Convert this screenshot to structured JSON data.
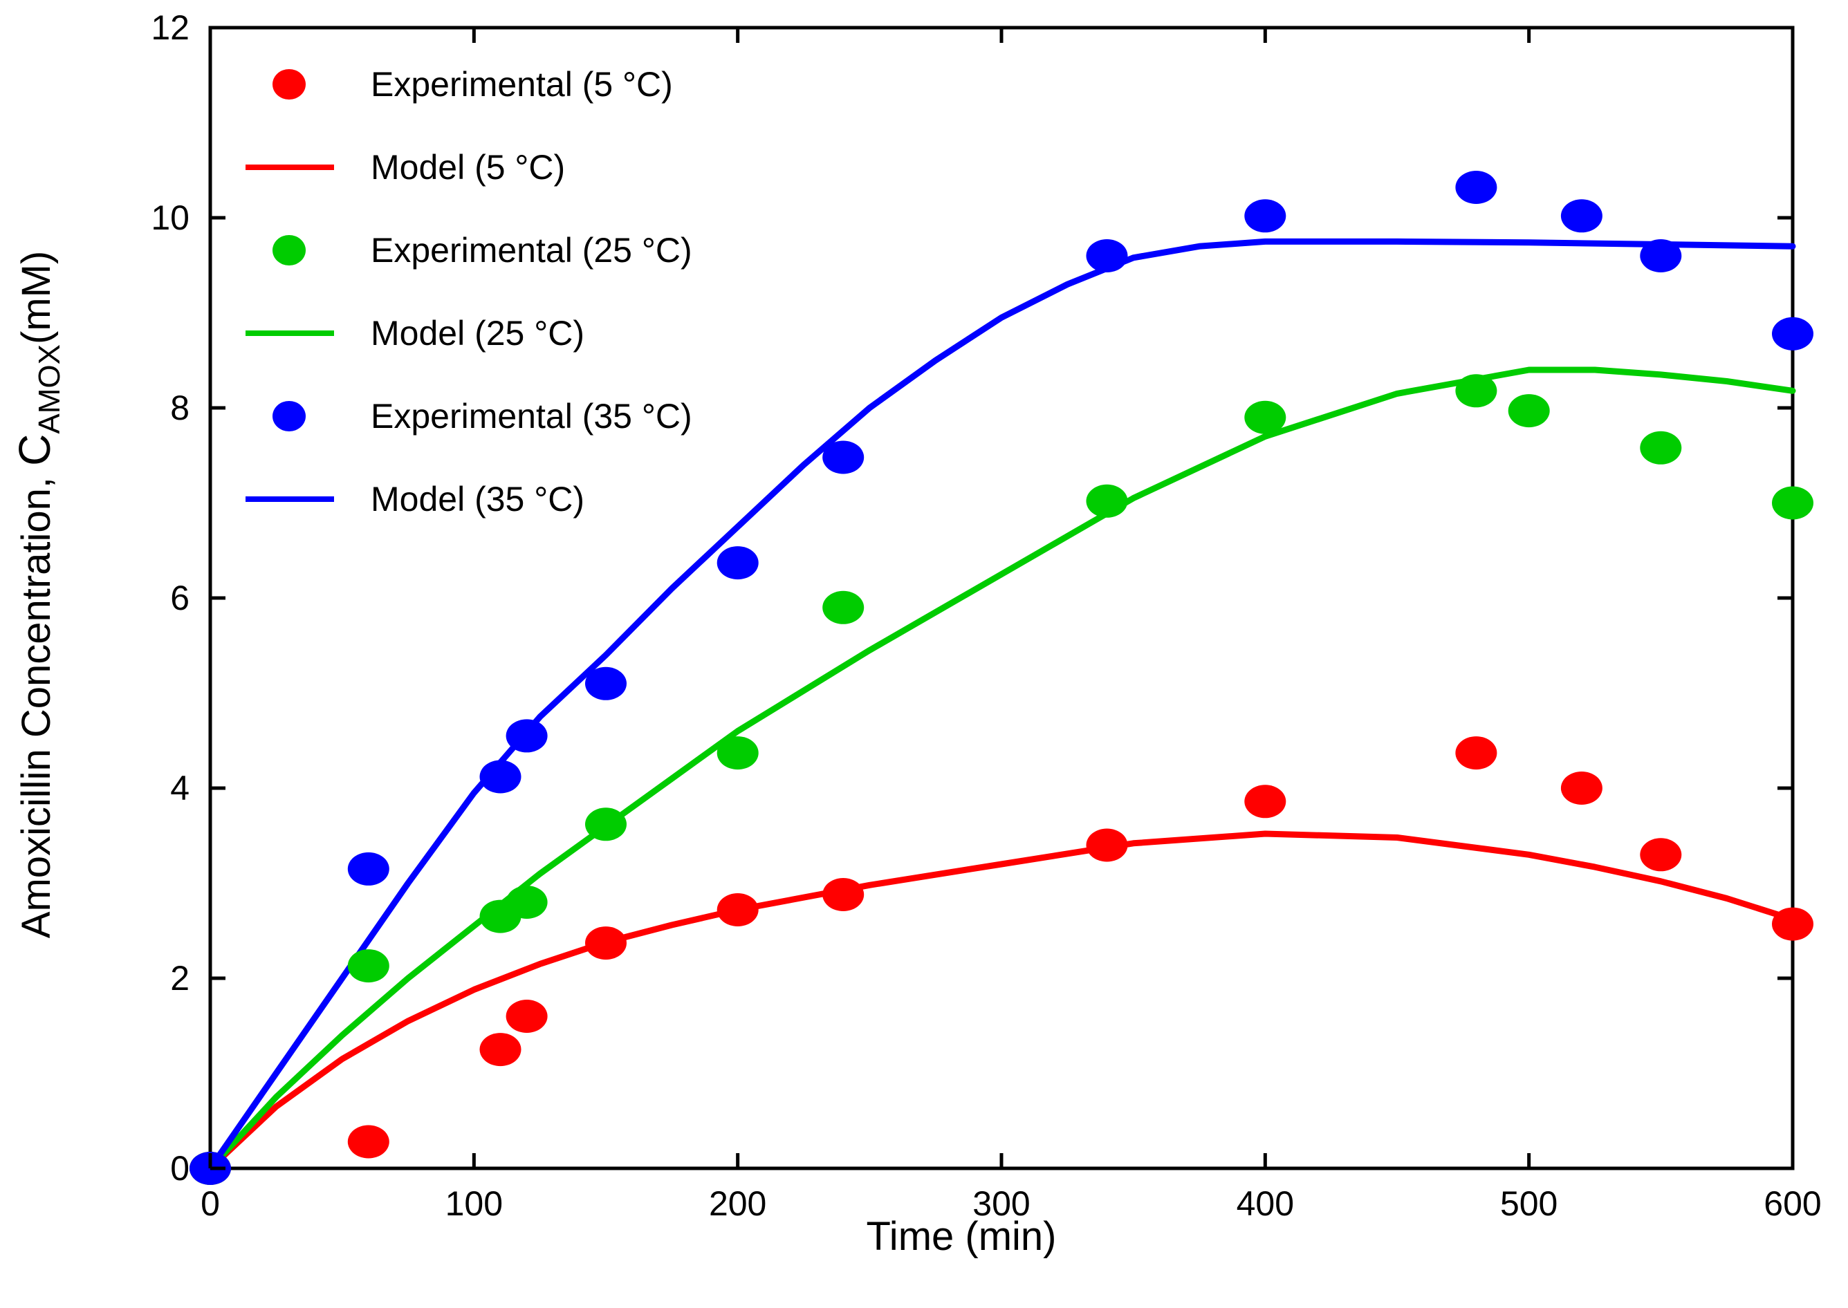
{
  "chart_data": {
    "type": "scatter",
    "title": "",
    "xlabel": "Time (min)",
    "ylabel": {
      "main": "Amoxicillin Concentration,  ",
      "symbol": "C",
      "subscript": "AMOX",
      "unit": "(mM)"
    },
    "xlim": [
      0,
      600
    ],
    "ylim": [
      0,
      12
    ],
    "xticks": [
      0,
      100,
      200,
      300,
      400,
      500,
      600
    ],
    "yticks": [
      0,
      2,
      4,
      6,
      8,
      10,
      12
    ],
    "xtick_labels": [
      "0",
      "100",
      "200",
      "300",
      "400",
      "500",
      "600"
    ],
    "ytick_labels": [
      "0",
      "2",
      "4",
      "6",
      "8",
      "10",
      "12"
    ],
    "grid": false,
    "legend_position": "top-left",
    "series": [
      {
        "name": "Experimental (5 °C)",
        "kind": "points",
        "color": "#ff0000",
        "x": [
          0,
          60,
          110,
          120,
          150,
          200,
          240,
          340,
          400,
          480,
          520,
          550,
          600
        ],
        "y": [
          0,
          0.28,
          1.25,
          1.6,
          2.37,
          2.72,
          2.88,
          3.4,
          3.86,
          4.37,
          4.0,
          3.3,
          2.57
        ]
      },
      {
        "name": "Model (5 °C)",
        "kind": "line",
        "color": "#ff0000",
        "x": [
          0,
          25,
          50,
          75,
          100,
          125,
          150,
          175,
          200,
          250,
          300,
          350,
          400,
          450,
          500,
          525,
          550,
          575,
          600
        ],
        "y": [
          0,
          0.65,
          1.15,
          1.55,
          1.88,
          2.15,
          2.38,
          2.56,
          2.72,
          2.98,
          3.2,
          3.42,
          3.52,
          3.48,
          3.3,
          3.17,
          3.02,
          2.84,
          2.62
        ]
      },
      {
        "name": "Experimental (25 °C)",
        "kind": "points",
        "color": "#00cc00",
        "x": [
          0,
          60,
          110,
          120,
          150,
          200,
          240,
          340,
          400,
          480,
          500,
          550,
          600
        ],
        "y": [
          0,
          2.13,
          2.65,
          2.8,
          3.62,
          4.37,
          5.9,
          7.02,
          7.9,
          8.18,
          7.97,
          7.58,
          7.0
        ],
        "marker_note": "shares the experimental series palette"
      },
      {
        "name": "Model (25 °C)",
        "kind": "line",
        "color": "#00cc00",
        "x": [
          0,
          25,
          50,
          75,
          100,
          125,
          150,
          175,
          200,
          250,
          300,
          350,
          400,
          450,
          500,
          525,
          550,
          575,
          600
        ],
        "y": [
          0,
          0.75,
          1.4,
          2.0,
          2.55,
          3.1,
          3.6,
          4.1,
          4.6,
          5.45,
          6.25,
          7.05,
          7.7,
          8.15,
          8.4,
          8.4,
          8.35,
          8.28,
          8.18
        ]
      },
      {
        "name": "Experimental (35 °C)",
        "kind": "points",
        "color": "#0000ff",
        "x": [
          0,
          60,
          110,
          120,
          150,
          200,
          240,
          340,
          400,
          480,
          520,
          550,
          600
        ],
        "y": [
          0,
          3.15,
          4.12,
          4.55,
          5.1,
          6.37,
          7.48,
          9.6,
          10.02,
          10.32,
          10.02,
          9.6,
          8.78
        ]
      },
      {
        "name": "Model (35 °C)",
        "kind": "line",
        "color": "#0000ff",
        "x": [
          0,
          25,
          50,
          75,
          100,
          125,
          150,
          175,
          200,
          225,
          250,
          275,
          300,
          325,
          350,
          375,
          400,
          450,
          500,
          550,
          600
        ],
        "y": [
          0,
          1.0,
          2.0,
          3.0,
          3.95,
          4.75,
          5.4,
          6.1,
          6.75,
          7.4,
          8.0,
          8.5,
          8.95,
          9.3,
          9.58,
          9.7,
          9.75,
          9.75,
          9.74,
          9.72,
          9.7
        ]
      }
    ]
  }
}
